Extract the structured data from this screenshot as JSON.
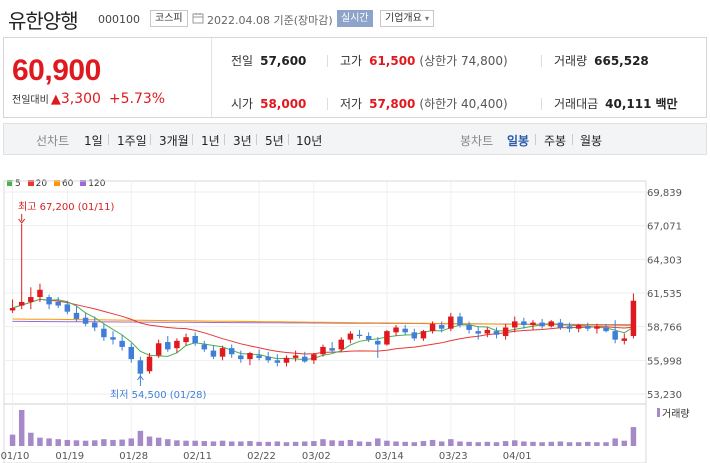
{
  "header": {
    "stock_name": "유한양행",
    "stock_code": "000100",
    "market": "코스피",
    "date": "2022.04.08",
    "date_suffix": "기준(장마감)",
    "live_label": "실시간",
    "overview_label": "기업개요"
  },
  "quote": {
    "price": "60,900",
    "change_label": "전일대비",
    "change": "3,300",
    "change_pct": "+5.73%",
    "prev_close_label": "전일",
    "prev_close": "57,600",
    "open_label": "시가",
    "open": "58,000",
    "high_label": "고가",
    "high": "61,500",
    "upper_limit": "(상한가 74,800)",
    "low_label": "저가",
    "low": "57,800",
    "lower_limit": "(하한가 40,400)",
    "volume_label": "거래량",
    "volume": "665,528",
    "amount_label": "거래대금",
    "amount": "40,111",
    "amount_unit": "백만",
    "up_color": "#e0191e"
  },
  "toolbar": {
    "line_chart": "선차트",
    "periods": [
      "1일",
      "1주일",
      "3개월",
      "1년",
      "3년",
      "5년",
      "10년"
    ],
    "candle_chart": "봉차트",
    "candle_periods": [
      "일봉",
      "주봉",
      "월봉"
    ],
    "active_candle": "일봉"
  },
  "ma_legend": [
    {
      "label": "5",
      "color": "#4caf50"
    },
    {
      "label": "20",
      "color": "#e53935"
    },
    {
      "label": "60",
      "color": "#ff9800"
    },
    {
      "label": "120",
      "color": "#9c6bd1"
    }
  ],
  "chart_data": {
    "type": "candlestick",
    "y_ticks": [
      "69,839",
      "67,071",
      "64,303",
      "61,535",
      "58,766",
      "55,998",
      "53,230"
    ],
    "x_ticks": [
      "01/10",
      "01/19",
      "01/28",
      "02/11",
      "02/22",
      "03/02",
      "03/14",
      "03/23",
      "04/01"
    ],
    "ylim": [
      53230,
      69839
    ],
    "high_annotation": "최고 67,200 (01/11)",
    "low_annotation": "최저 54,500 (01/28)",
    "volume_label": "거래량",
    "up_color": "#e0191e",
    "down_color": "#3f7fd8",
    "volume_color": "#a589c9",
    "candles": [
      [
        60100,
        61000,
        59900,
        60300
      ],
      [
        60500,
        67200,
        60200,
        60800
      ],
      [
        60800,
        62000,
        60200,
        61200
      ],
      [
        61200,
        62300,
        60800,
        61800
      ],
      [
        61200,
        61400,
        60200,
        60600
      ],
      [
        60800,
        61200,
        60300,
        60500
      ],
      [
        60600,
        60900,
        59800,
        60000
      ],
      [
        59900,
        60500,
        59200,
        59400
      ],
      [
        59500,
        59900,
        58800,
        59000
      ],
      [
        59100,
        59600,
        58400,
        58700
      ],
      [
        58600,
        59000,
        57600,
        57900
      ],
      [
        57900,
        58400,
        57300,
        57700
      ],
      [
        57600,
        58100,
        56800,
        57100
      ],
      [
        57100,
        57400,
        55800,
        56100
      ],
      [
        56000,
        56300,
        54500,
        54900
      ],
      [
        55100,
        56600,
        54900,
        56300
      ],
      [
        56400,
        57700,
        56200,
        57400
      ],
      [
        57500,
        58000,
        56700,
        56900
      ],
      [
        57000,
        57800,
        56600,
        57600
      ],
      [
        57500,
        58200,
        57200,
        57900
      ],
      [
        58000,
        58300,
        57200,
        57400
      ],
      [
        57300,
        57600,
        56700,
        56900
      ],
      [
        56800,
        57200,
        56100,
        56300
      ],
      [
        56300,
        57200,
        56000,
        57000
      ],
      [
        57000,
        57300,
        56200,
        56500
      ],
      [
        56400,
        56800,
        55800,
        56100
      ],
      [
        56100,
        56700,
        55600,
        56600
      ],
      [
        56400,
        56900,
        56000,
        56200
      ],
      [
        56300,
        56700,
        55800,
        56000
      ],
      [
        56000,
        56500,
        55500,
        55800
      ],
      [
        55800,
        56400,
        55500,
        56200
      ],
      [
        56200,
        56800,
        55900,
        56400
      ],
      [
        56300,
        56700,
        55800,
        55900
      ],
      [
        56000,
        56600,
        55700,
        56500
      ],
      [
        56500,
        57300,
        56300,
        57100
      ],
      [
        57000,
        57500,
        56600,
        56800
      ],
      [
        56900,
        57900,
        56700,
        57700
      ],
      [
        57700,
        58400,
        57400,
        58200
      ],
      [
        58100,
        58500,
        57800,
        58000
      ],
      [
        58000,
        58300,
        57500,
        57700
      ],
      [
        57600,
        57900,
        56200,
        57300
      ],
      [
        57300,
        58500,
        57200,
        58400
      ],
      [
        58300,
        58900,
        58000,
        58700
      ],
      [
        58600,
        58900,
        58100,
        58300
      ],
      [
        58300,
        58600,
        57600,
        57800
      ],
      [
        57800,
        58500,
        57600,
        58400
      ],
      [
        58400,
        59200,
        58200,
        59000
      ],
      [
        58900,
        59200,
        58300,
        58600
      ],
      [
        58600,
        59900,
        58400,
        59600
      ],
      [
        59600,
        59900,
        58700,
        58900
      ],
      [
        58900,
        59200,
        58200,
        58500
      ],
      [
        58400,
        58800,
        57700,
        58200
      ],
      [
        58200,
        58700,
        57900,
        58500
      ],
      [
        58400,
        58700,
        57800,
        58100
      ],
      [
        58000,
        59000,
        57700,
        58700
      ],
      [
        58700,
        59600,
        58300,
        59200
      ],
      [
        59200,
        59500,
        58600,
        58900
      ],
      [
        58900,
        59300,
        58500,
        59100
      ],
      [
        59100,
        59400,
        58600,
        58800
      ],
      [
        58800,
        59300,
        58700,
        59200
      ],
      [
        59100,
        59400,
        58500,
        58700
      ],
      [
        58800,
        59100,
        58300,
        58600
      ],
      [
        58600,
        59000,
        58300,
        58900
      ],
      [
        58800,
        59100,
        58400,
        58600
      ],
      [
        58600,
        59000,
        58200,
        58800
      ],
      [
        58700,
        59000,
        58300,
        58400
      ],
      [
        58400,
        59300,
        57400,
        57700
      ],
      [
        57600,
        58200,
        57300,
        57800
      ],
      [
        58000,
        61500,
        57800,
        60900
      ]
    ],
    "volumes": [
      30,
      95,
      35,
      22,
      20,
      18,
      16,
      15,
      14,
      15,
      18,
      16,
      17,
      20,
      40,
      25,
      22,
      18,
      15,
      14,
      14,
      13,
      12,
      14,
      12,
      12,
      13,
      11,
      11,
      12,
      10,
      11,
      12,
      13,
      18,
      15,
      14,
      16,
      12,
      11,
      20,
      14,
      12,
      11,
      10,
      13,
      16,
      12,
      18,
      12,
      11,
      10,
      11,
      10,
      13,
      15,
      12,
      11,
      10,
      11,
      12,
      10,
      10,
      11,
      10,
      10,
      20,
      14,
      50
    ]
  }
}
